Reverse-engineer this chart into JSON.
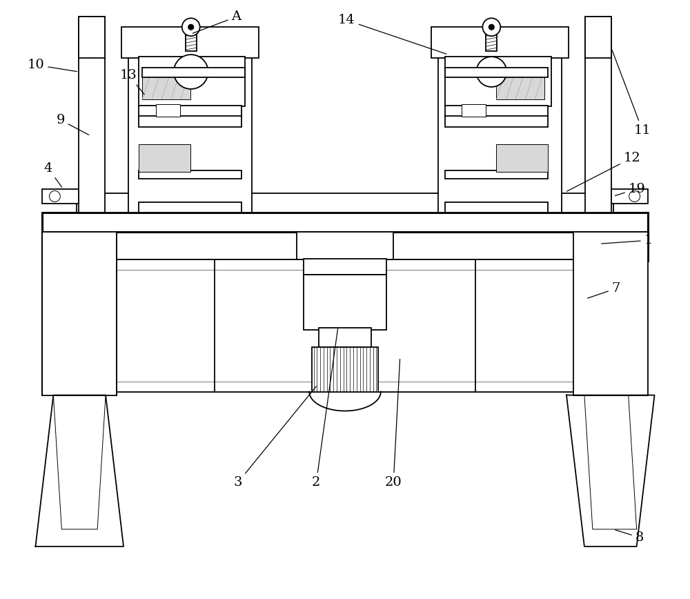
{
  "bg_color": "#ffffff",
  "line_color": "#000000",
  "lw": 1.3,
  "lw_thin": 0.7,
  "lw_thick": 2.2,
  "fs": 14
}
